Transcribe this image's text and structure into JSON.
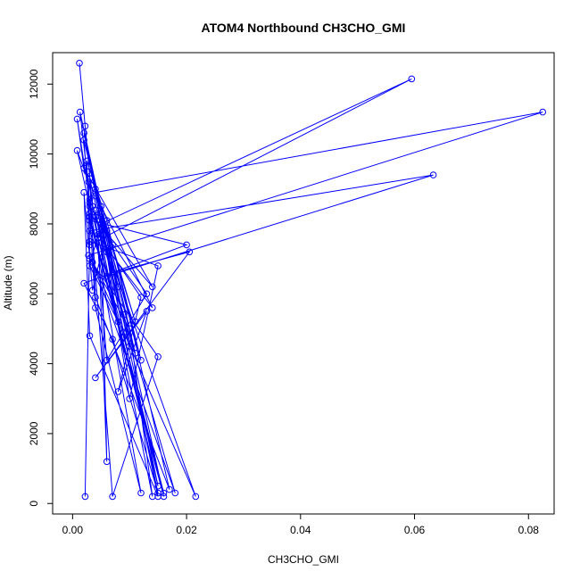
{
  "chart_data": {
    "type": "line",
    "title": "ATOM4 Northbound CH3CHO_GMI",
    "xlabel": "CH3CHO_GMI",
    "ylabel": "Altitude (m)",
    "xlim": [
      -0.0035,
      0.0845
    ],
    "ylim": [
      -300,
      12900
    ],
    "xticks": [
      0.0,
      0.02,
      0.04,
      0.06,
      0.08
    ],
    "xtick_labels": [
      "0.00",
      "0.02",
      "0.04",
      "0.06",
      "0.08"
    ],
    "yticks": [
      0,
      2000,
      4000,
      6000,
      8000,
      10000,
      12000
    ],
    "ytick_labels": [
      "0",
      "2000",
      "4000",
      "6000",
      "8000",
      "10000",
      "12000"
    ],
    "grid": false,
    "legend": "none",
    "markers": "open-circle",
    "color": "#0000ff",
    "series": [
      {
        "x": [
          0.0012,
          0.0022,
          0.0035,
          0.008,
          0.0013,
          0.0025,
          0.0045,
          0.016,
          0.003,
          0.002,
          0.004,
          0.011,
          0.006,
          0.0035,
          0.002,
          0.003,
          0.015,
          0.005,
          0.002,
          0.01,
          0.006,
          0.003,
          0.004,
          0.017,
          0.006,
          0.0025,
          0.003,
          0.015,
          0.007,
          0.003,
          0.0008,
          0.002,
          0.014,
          0.003,
          0.004,
          0.012,
          0.003,
          0.0008,
          0.0028,
          0.003,
          0.0595,
          0.005,
          0.003,
          0.008,
          0.003,
          0.015,
          0.005,
          0.007,
          0.012,
          0.004,
          0.0825,
          0.0028,
          0.01,
          0.014,
          0.004,
          0.006,
          0.0633,
          0.003,
          0.009,
          0.016,
          0.003,
          0.02,
          0.002,
          0.007,
          0.015,
          0.005,
          0.013,
          0.006,
          0.004,
          0.018,
          0.0035,
          0.009,
          0.0216,
          0.006,
          0.014,
          0.005,
          0.011,
          0.004,
          0.007,
          0.0205,
          0.004,
          0.013,
          0.008,
          0.012,
          0.0045,
          0.006,
          0.005,
          0.01,
          0.015,
          0.003,
          0.0022
        ],
        "y": [
          12600,
          10800,
          8500,
          6200,
          11200,
          9500,
          7600,
          300,
          8200,
          10400,
          9000,
          5200,
          7800,
          6100,
          8900,
          4800,
          200,
          8000,
          10600,
          4500,
          7200,
          9300,
          5900,
          400,
          8100,
          9800,
          7000,
          4200,
          200,
          8700,
          11000,
          9600,
          6200,
          8300,
          5600,
          300,
          8500,
          10100,
          9200,
          7400,
          12150,
          8000,
          6800,
          5200,
          8600,
          500,
          8300,
          7400,
          4100,
          8900,
          11200,
          7100,
          5000,
          200,
          8400,
          6500,
          9400,
          7800,
          5400,
          200,
          8100,
          7400,
          6300,
          4700,
          300,
          7900,
          6000,
          4100,
          8200,
          300,
          6900,
          4900,
          200,
          7300,
          5600,
          8500,
          4300,
          8800,
          6600,
          7200,
          3600,
          5500,
          3200,
          5900,
          7700,
          1200,
          8200,
          3000,
          6800,
          7500,
          200
        ]
      }
    ]
  }
}
